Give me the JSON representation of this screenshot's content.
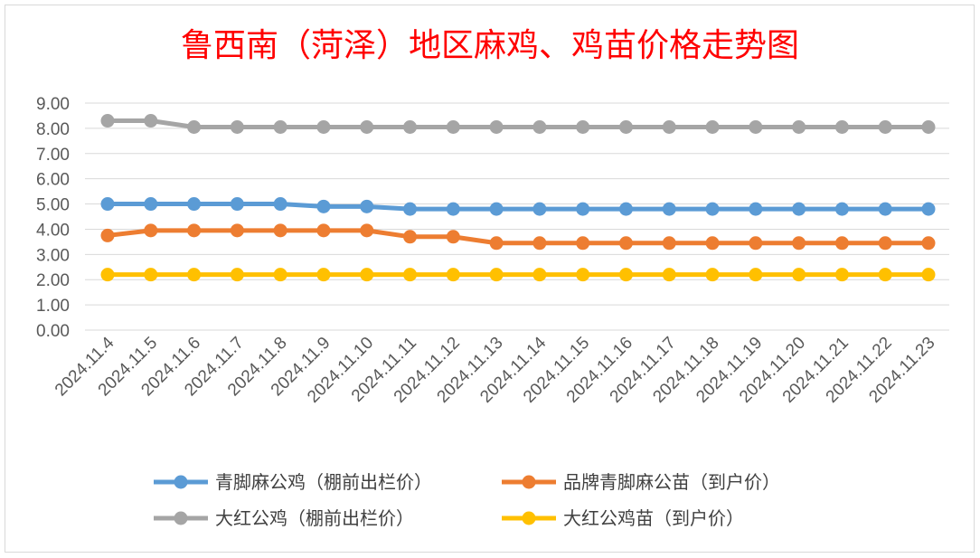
{
  "chart_data": {
    "type": "line",
    "title": "鲁西南（菏泽）地区麻鸡、鸡苗价格走势图",
    "categories": [
      "2024.11.4",
      "2024.11.5",
      "2024.11.6",
      "2024.11.7",
      "2024.11.8",
      "2024.11.9",
      "2024.11.10",
      "2024.11.11",
      "2024.11.12",
      "2024.11.13",
      "2024.11.14",
      "2024.11.15",
      "2024.11.16",
      "2024.11.17",
      "2024.11.18",
      "2024.11.19",
      "2024.11.20",
      "2024.11.21",
      "2024.11.22",
      "2024.11.23"
    ],
    "yticks": [
      "0.00",
      "1.00",
      "2.00",
      "3.00",
      "4.00",
      "5.00",
      "6.00",
      "7.00",
      "8.00",
      "9.00"
    ],
    "ylim": [
      0,
      9
    ],
    "grid": true,
    "legend_position": "bottom",
    "series": [
      {
        "name": "青脚麻公鸡（棚前出栏价）",
        "color": "#5b9bd5",
        "values": [
          5.0,
          5.0,
          5.0,
          5.0,
          5.0,
          4.9,
          4.9,
          4.8,
          4.8,
          4.8,
          4.8,
          4.8,
          4.8,
          4.8,
          4.8,
          4.8,
          4.8,
          4.8,
          4.8,
          4.8
        ]
      },
      {
        "name": "品牌青脚麻公苗（到户价）",
        "color": "#ed7d31",
        "values": [
          3.75,
          3.95,
          3.95,
          3.95,
          3.95,
          3.95,
          3.95,
          3.7,
          3.7,
          3.45,
          3.45,
          3.45,
          3.45,
          3.45,
          3.45,
          3.45,
          3.45,
          3.45,
          3.45,
          3.45
        ]
      },
      {
        "name": "大红公鸡（棚前出栏价）",
        "color": "#a5a5a5",
        "values": [
          8.3,
          8.3,
          8.05,
          8.05,
          8.05,
          8.05,
          8.05,
          8.05,
          8.05,
          8.05,
          8.05,
          8.05,
          8.05,
          8.05,
          8.05,
          8.05,
          8.05,
          8.05,
          8.05,
          8.05
        ]
      },
      {
        "name": "大红公鸡苗（到户价）",
        "color": "#ffc000",
        "values": [
          2.2,
          2.2,
          2.2,
          2.2,
          2.2,
          2.2,
          2.2,
          2.2,
          2.2,
          2.2,
          2.2,
          2.2,
          2.2,
          2.2,
          2.2,
          2.2,
          2.2,
          2.2,
          2.2,
          2.2
        ]
      }
    ]
  }
}
